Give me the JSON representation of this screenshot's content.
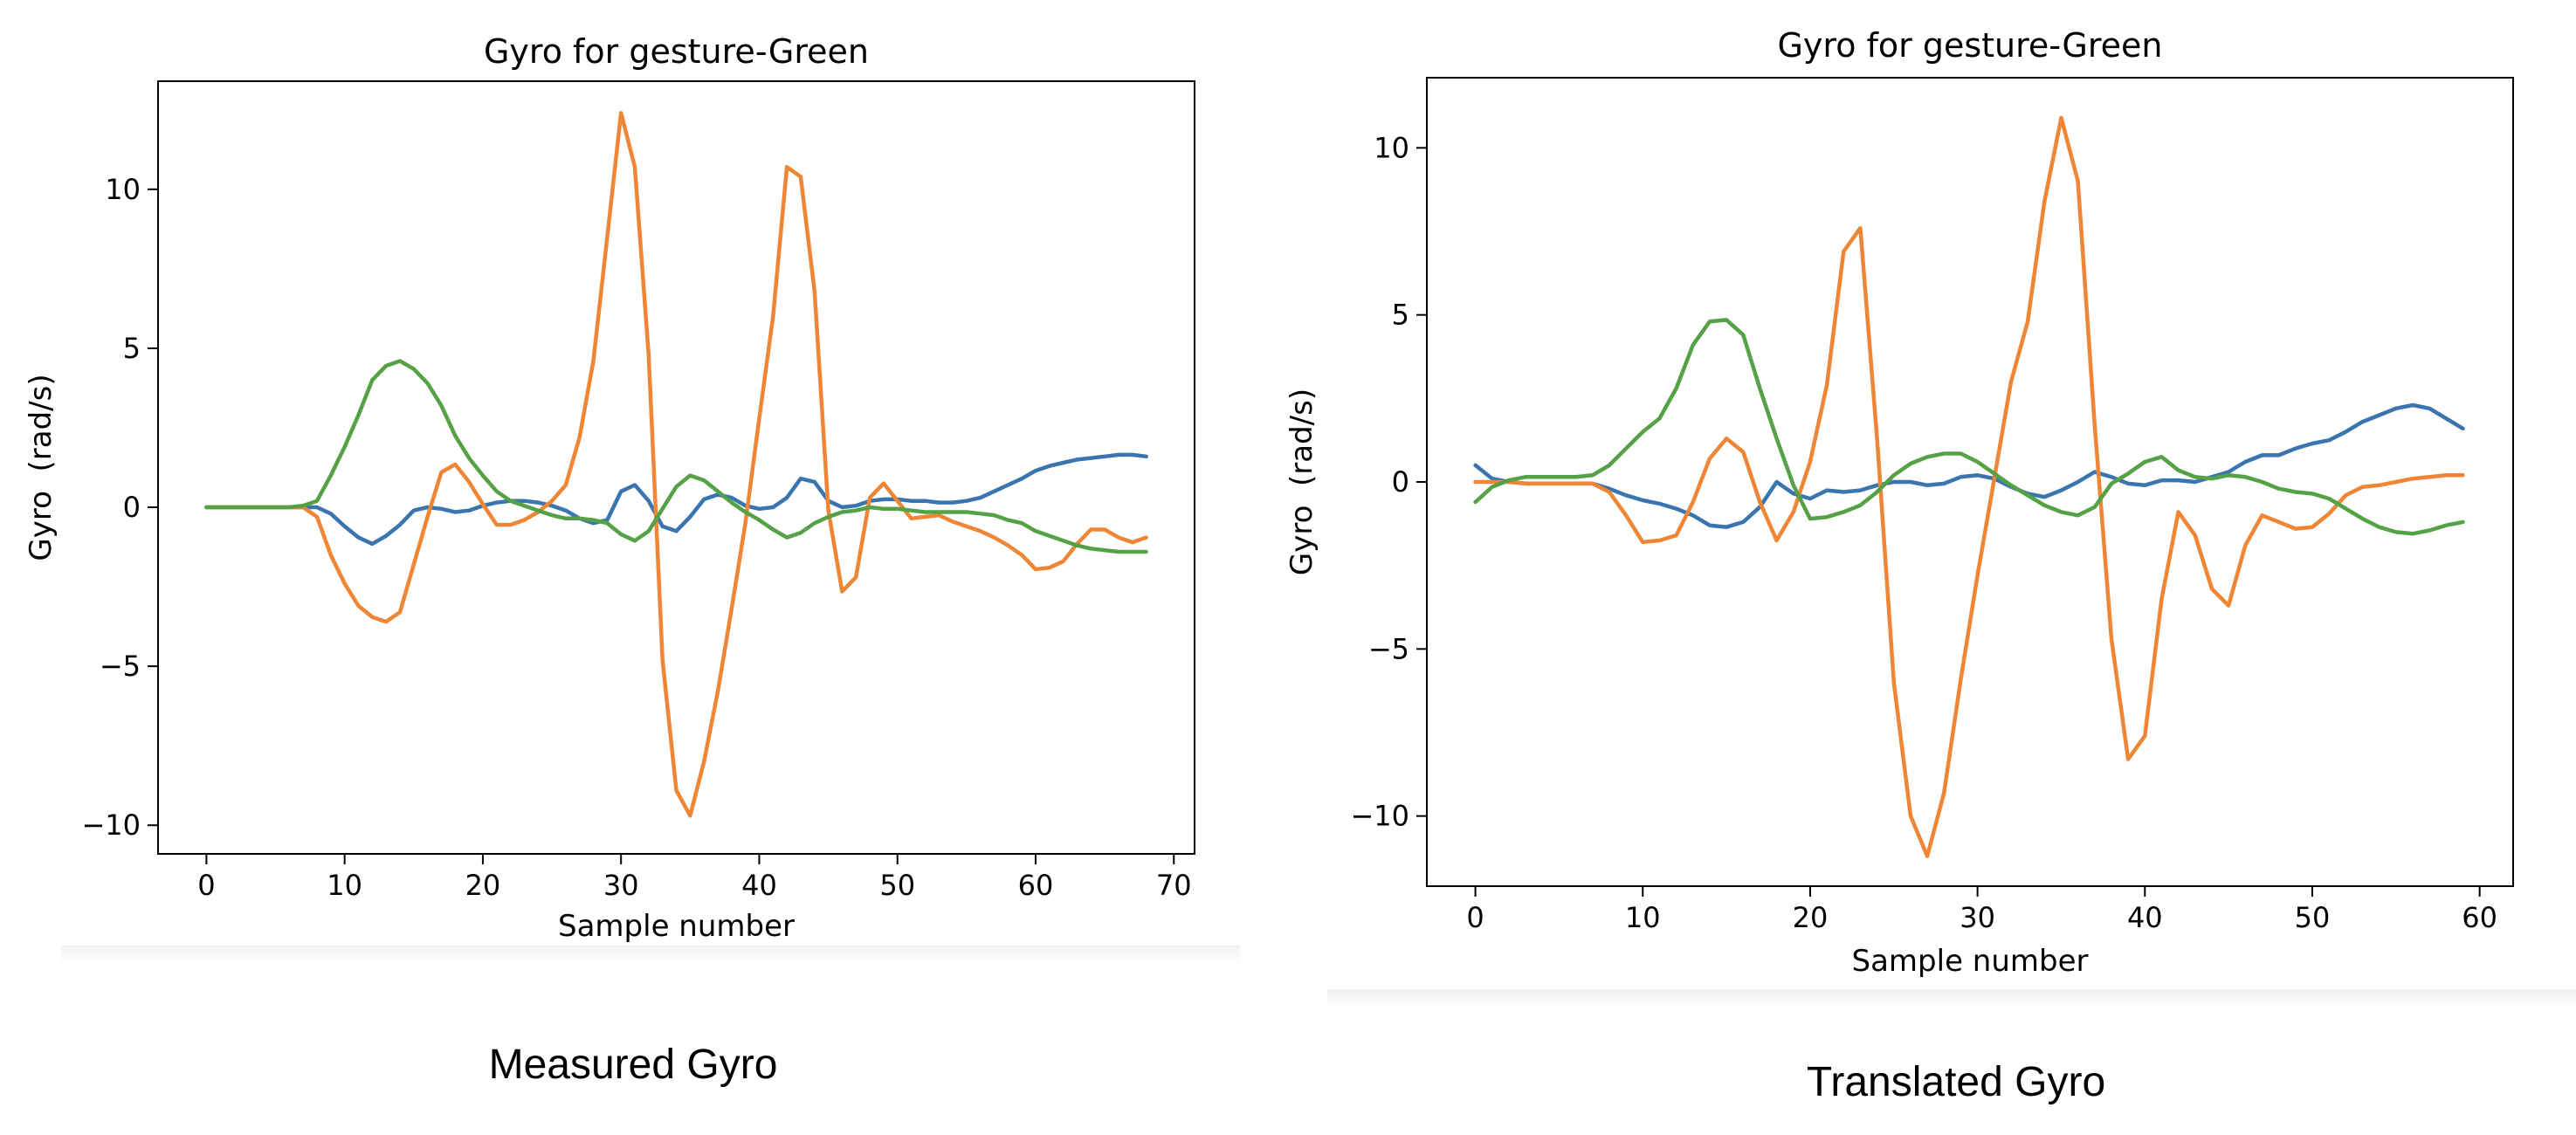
{
  "colors": {
    "blue": "#3a75b0",
    "orange": "#ee8636",
    "green": "#55a145"
  },
  "captions": {
    "left": "Measured Gyro",
    "right": "Translated Gyro"
  },
  "chart_data": [
    {
      "type": "line",
      "title": "Gyro for gesture-Green",
      "xlabel": "Sample number",
      "ylabel": "Gyro  (rad/s)",
      "xlim": [
        -3.5,
        71.5
      ],
      "ylim": [
        -10.9,
        13.4
      ],
      "xticks": [
        0,
        10,
        20,
        30,
        40,
        50,
        60,
        70
      ],
      "yticks": [
        -10,
        -5,
        0,
        5,
        10
      ],
      "grid": false,
      "legend": "none",
      "series": [
        {
          "color": "#3a75b0",
          "x": [
            0,
            1,
            2,
            3,
            4,
            5,
            6,
            7,
            8,
            9,
            10,
            11,
            12,
            13,
            14,
            15,
            16,
            17,
            18,
            19,
            20,
            21,
            22,
            23,
            24,
            25,
            26,
            27,
            28,
            29,
            30,
            31,
            32,
            33,
            34,
            35,
            36,
            37,
            38,
            39,
            40,
            41,
            42,
            43,
            44,
            45,
            46,
            47,
            48,
            49,
            50,
            51,
            52,
            53,
            54,
            55,
            56,
            57,
            58,
            59,
            60,
            61,
            62,
            63,
            64,
            65,
            66,
            67,
            68
          ],
          "y": [
            0,
            0,
            0,
            0,
            0,
            0,
            0,
            0,
            0,
            -0.2,
            -0.6,
            -0.95,
            -1.15,
            -0.9,
            -0.55,
            -0.1,
            0,
            -0.05,
            -0.15,
            -0.1,
            0.05,
            0.15,
            0.2,
            0.2,
            0.15,
            0.05,
            -0.1,
            -0.35,
            -0.5,
            -0.4,
            0.5,
            0.7,
            0.2,
            -0.6,
            -0.75,
            -0.3,
            0.25,
            0.4,
            0.3,
            0.05,
            -0.05,
            0,
            0.3,
            0.9,
            0.8,
            0.2,
            0,
            0.05,
            0.2,
            0.25,
            0.25,
            0.2,
            0.2,
            0.15,
            0.15,
            0.2,
            0.3,
            0.5,
            0.7,
            0.9,
            1.15,
            1.3,
            1.4,
            1.5,
            1.55,
            1.6,
            1.65,
            1.65,
            1.6
          ]
        },
        {
          "color": "#ee8636",
          "x": [
            0,
            1,
            2,
            3,
            4,
            5,
            6,
            7,
            8,
            9,
            10,
            11,
            12,
            13,
            14,
            15,
            16,
            17,
            18,
            19,
            20,
            21,
            22,
            23,
            24,
            25,
            26,
            27,
            28,
            29,
            30,
            31,
            32,
            33,
            34,
            35,
            36,
            37,
            38,
            39,
            40,
            41,
            42,
            43,
            44,
            45,
            46,
            47,
            48,
            49,
            50,
            51,
            52,
            53,
            54,
            55,
            56,
            57,
            58,
            59,
            60,
            61,
            62,
            63,
            64,
            65,
            66,
            67,
            68
          ],
          "y": [
            0,
            0,
            0,
            0,
            0,
            0,
            0,
            0,
            -0.3,
            -1.5,
            -2.4,
            -3.1,
            -3.45,
            -3.6,
            -3.3,
            -1.8,
            -0.3,
            1.1,
            1.35,
            0.8,
            0.1,
            -0.55,
            -0.55,
            -0.4,
            -0.15,
            0.2,
            0.7,
            2.2,
            4.6,
            8.5,
            12.4,
            10.7,
            4.8,
            -4.8,
            -8.9,
            -9.7,
            -8,
            -5.8,
            -3.2,
            -0.5,
            2.8,
            6,
            10.7,
            10.4,
            6.8,
            -0.1,
            -2.65,
            -2.2,
            0.3,
            0.75,
            0.2,
            -0.35,
            -0.3,
            -0.25,
            -0.45,
            -0.6,
            -0.75,
            -0.95,
            -1.2,
            -1.5,
            -1.95,
            -1.9,
            -1.7,
            -1.15,
            -0.7,
            -0.7,
            -0.95,
            -1.1,
            -0.95
          ]
        },
        {
          "color": "#55a145",
          "x": [
            0,
            1,
            2,
            3,
            4,
            5,
            6,
            7,
            8,
            9,
            10,
            11,
            12,
            13,
            14,
            15,
            16,
            17,
            18,
            19,
            20,
            21,
            22,
            23,
            24,
            25,
            26,
            27,
            28,
            29,
            30,
            31,
            32,
            33,
            34,
            35,
            36,
            37,
            38,
            39,
            40,
            41,
            42,
            43,
            44,
            45,
            46,
            47,
            48,
            49,
            50,
            51,
            52,
            53,
            54,
            55,
            56,
            57,
            58,
            59,
            60,
            61,
            62,
            63,
            64,
            65,
            66,
            67,
            68
          ],
          "y": [
            0,
            0,
            0,
            0,
            0,
            0,
            0,
            0.05,
            0.2,
            1,
            1.9,
            2.9,
            4,
            4.45,
            4.6,
            4.35,
            3.9,
            3.2,
            2.25,
            1.55,
            1,
            0.5,
            0.2,
            0.05,
            -0.1,
            -0.25,
            -0.35,
            -0.35,
            -0.4,
            -0.5,
            -0.85,
            -1.05,
            -0.75,
            -0.05,
            0.65,
            1,
            0.85,
            0.5,
            0.15,
            -0.15,
            -0.4,
            -0.7,
            -0.95,
            -0.8,
            -0.5,
            -0.3,
            -0.15,
            -0.1,
            0,
            -0.05,
            -0.05,
            -0.1,
            -0.15,
            -0.15,
            -0.15,
            -0.15,
            -0.2,
            -0.25,
            -0.4,
            -0.5,
            -0.75,
            -0.9,
            -1.05,
            -1.2,
            -1.3,
            -1.35,
            -1.4,
            -1.4,
            -1.4
          ]
        }
      ]
    },
    {
      "type": "line",
      "title": "Gyro for gesture-Green",
      "xlabel": "Sample number",
      "ylabel": "Gyro  (rad/s)",
      "xlim": [
        -2.9,
        62
      ],
      "ylim": [
        -12.1,
        12.1
      ],
      "xticks": [
        0,
        10,
        20,
        30,
        40,
        50,
        60
      ],
      "yticks": [
        -10,
        -5,
        0,
        5,
        10
      ],
      "grid": false,
      "legend": "none",
      "series": [
        {
          "color": "#3a75b0",
          "x": [
            0,
            1,
            2,
            3,
            4,
            5,
            6,
            7,
            8,
            9,
            10,
            11,
            12,
            13,
            14,
            15,
            16,
            17,
            18,
            19,
            20,
            21,
            22,
            23,
            24,
            25,
            26,
            27,
            28,
            29,
            30,
            31,
            32,
            33,
            34,
            35,
            36,
            37,
            38,
            39,
            40,
            41,
            42,
            43,
            44,
            45,
            46,
            47,
            48,
            49,
            50,
            51,
            52,
            53,
            54,
            55,
            56,
            57,
            58,
            59
          ],
          "y": [
            0.5,
            0.1,
            0,
            -0.05,
            -0.05,
            -0.05,
            -0.05,
            -0.05,
            -0.2,
            -0.4,
            -0.55,
            -0.65,
            -0.8,
            -1,
            -1.3,
            -1.35,
            -1.2,
            -0.75,
            0,
            -0.35,
            -0.5,
            -0.25,
            -0.3,
            -0.25,
            -0.1,
            0,
            0,
            -0.1,
            -0.05,
            0.15,
            0.2,
            0.1,
            -0.15,
            -0.35,
            -0.45,
            -0.25,
            0,
            0.3,
            0.15,
            -0.05,
            -0.1,
            0.05,
            0.05,
            0,
            0.15,
            0.3,
            0.6,
            0.8,
            0.8,
            1,
            1.15,
            1.25,
            1.5,
            1.8,
            2,
            2.2,
            2.3,
            2.2,
            1.9,
            1.6
          ]
        },
        {
          "color": "#ee8636",
          "x": [
            0,
            1,
            2,
            3,
            4,
            5,
            6,
            7,
            8,
            9,
            10,
            11,
            12,
            13,
            14,
            15,
            16,
            17,
            18,
            19,
            20,
            21,
            22,
            23,
            24,
            25,
            26,
            27,
            28,
            29,
            30,
            31,
            32,
            33,
            34,
            35,
            36,
            37,
            38,
            39,
            40,
            41,
            42,
            43,
            44,
            45,
            46,
            47,
            48,
            49,
            50,
            51,
            52,
            53,
            54,
            55,
            56,
            57,
            58,
            59
          ],
          "y": [
            0,
            0,
            0,
            -0.05,
            -0.05,
            -0.05,
            -0.05,
            -0.05,
            -0.3,
            -1,
            -1.8,
            -1.75,
            -1.6,
            -0.6,
            0.7,
            1.3,
            0.9,
            -0.6,
            -1.75,
            -0.9,
            0.6,
            2.9,
            6.9,
            7.6,
            1.3,
            -6,
            -10,
            -11.2,
            -9.3,
            -5.9,
            -2.8,
            0.1,
            3,
            4.8,
            8.4,
            10.9,
            9,
            1.7,
            -4.7,
            -8.3,
            -7.6,
            -3.5,
            -0.9,
            -1.6,
            -3.2,
            -3.7,
            -1.9,
            -1,
            -1.2,
            -1.4,
            -1.35,
            -0.95,
            -0.4,
            -0.15,
            -0.1,
            0,
            0.1,
            0.15,
            0.2,
            0.2
          ]
        },
        {
          "color": "#55a145",
          "x": [
            0,
            1,
            2,
            3,
            4,
            5,
            6,
            7,
            8,
            9,
            10,
            11,
            12,
            13,
            14,
            15,
            16,
            17,
            18,
            19,
            20,
            21,
            22,
            23,
            24,
            25,
            26,
            27,
            28,
            29,
            30,
            31,
            32,
            33,
            34,
            35,
            36,
            37,
            38,
            39,
            40,
            41,
            42,
            43,
            44,
            45,
            46,
            47,
            48,
            49,
            50,
            51,
            52,
            53,
            54,
            55,
            56,
            57,
            58,
            59
          ],
          "y": [
            -0.6,
            -0.15,
            0.05,
            0.15,
            0.15,
            0.15,
            0.15,
            0.2,
            0.5,
            1,
            1.5,
            1.9,
            2.8,
            4.1,
            4.8,
            4.85,
            4.4,
            2.8,
            1.3,
            -0.1,
            -1.1,
            -1.05,
            -0.9,
            -0.7,
            -0.3,
            0.2,
            0.55,
            0.75,
            0.85,
            0.85,
            0.6,
            0.25,
            -0.1,
            -0.4,
            -0.7,
            -0.9,
            -1,
            -0.75,
            -0.05,
            0.25,
            0.6,
            0.75,
            0.35,
            0.15,
            0.1,
            0.2,
            0.15,
            0,
            -0.2,
            -0.3,
            -0.35,
            -0.5,
            -0.8,
            -1.1,
            -1.35,
            -1.5,
            -1.55,
            -1.45,
            -1.3,
            -1.2
          ]
        }
      ]
    }
  ]
}
